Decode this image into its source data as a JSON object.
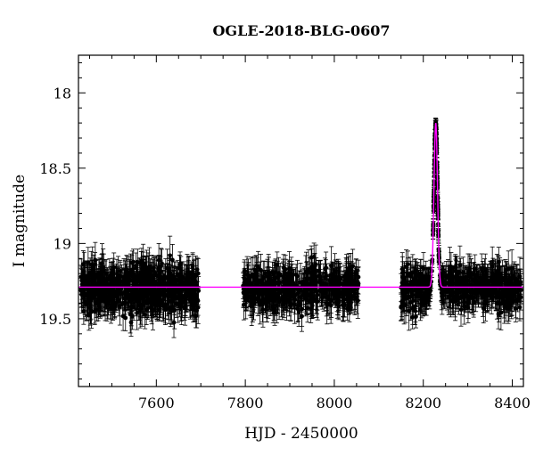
{
  "chart_data": {
    "type": "scatter",
    "title": "OGLE-2018-BLG-0607",
    "xlabel": "HJD - 2450000",
    "ylabel": "I magnitude",
    "xlim": [
      7425,
      8425
    ],
    "ylim": [
      19.95,
      17.75
    ],
    "y_inverted": true,
    "x_ticks": [
      7600,
      7800,
      8000,
      8200,
      8400
    ],
    "y_ticks": [
      18,
      18.5,
      19,
      19.5
    ],
    "grid": false,
    "legend": "none",
    "colors": {
      "points": "#000000",
      "model": "#ff00ff"
    },
    "series": [
      {
        "kind": "points_with_errorbars",
        "segments": [
          {
            "x_range": [
              7430,
              7695
            ],
            "y_mean": 19.3,
            "y_spread": 0.2,
            "err": 0.1,
            "count": 700
          },
          {
            "x_range": [
              7795,
              8055
            ],
            "y_mean": 19.3,
            "y_spread": 0.17,
            "err": 0.1,
            "count": 520
          },
          {
            "x_range": [
              8150,
              8420
            ],
            "y_mean": 19.3,
            "y_spread": 0.17,
            "err": 0.1,
            "count": 560
          }
        ],
        "peak": {
          "t0": 8228,
          "y_peak": 18.22,
          "baseline": 19.29,
          "tE": 4
        }
      },
      {
        "kind": "model_curve",
        "baseline": 19.29,
        "peak_mag": 18.2,
        "t0": 8228,
        "tE": 4
      }
    ]
  }
}
